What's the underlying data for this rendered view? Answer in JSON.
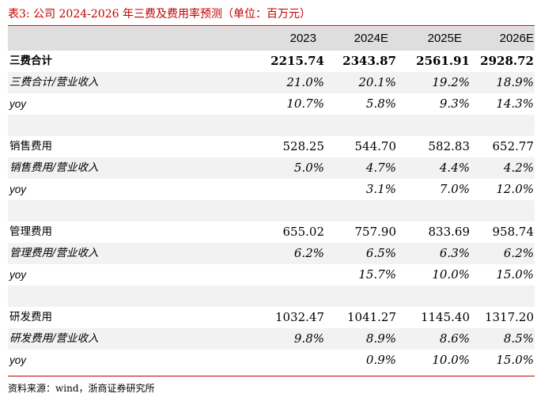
{
  "title": "表3:  公司 2024-2026 年三费及费用率预测（单位：百万元）",
  "columns": [
    "2023",
    "2024E",
    "2025E",
    "2026E"
  ],
  "rows": [
    {
      "label": "三费合计",
      "values": [
        "2215.74",
        "2343.87",
        "2561.91",
        "2928.72"
      ]
    },
    {
      "label": "三费合计/营业收入",
      "values": [
        "21.0%",
        "20.1%",
        "19.2%",
        "18.9%"
      ]
    },
    {
      "label": "yoy",
      "values": [
        "10.7%",
        "5.8%",
        "9.3%",
        "14.3%"
      ]
    },
    {
      "label": "",
      "values": [
        "",
        "",
        "",
        ""
      ]
    },
    {
      "label": "销售费用",
      "values": [
        "528.25",
        "544.70",
        "582.83",
        "652.77"
      ]
    },
    {
      "label": "销售费用/营业收入",
      "values": [
        "5.0%",
        "4.7%",
        "4.4%",
        "4.2%"
      ]
    },
    {
      "label": "yoy",
      "values": [
        "",
        "3.1%",
        "7.0%",
        "12.0%"
      ]
    },
    {
      "label": "",
      "values": [
        "",
        "",
        "",
        ""
      ]
    },
    {
      "label": "管理费用",
      "values": [
        "655.02",
        "757.90",
        "833.69",
        "958.74"
      ]
    },
    {
      "label": "管理费用/营业收入",
      "values": [
        "6.2%",
        "6.5%",
        "6.3%",
        "6.2%"
      ]
    },
    {
      "label": "yoy",
      "values": [
        "",
        "15.7%",
        "10.0%",
        "15.0%"
      ]
    },
    {
      "label": "",
      "values": [
        "",
        "",
        "",
        ""
      ]
    },
    {
      "label": "研发费用",
      "values": [
        "1032.47",
        "1041.27",
        "1145.40",
        "1317.20"
      ]
    },
    {
      "label": "研发费用/营业收入",
      "values": [
        "9.8%",
        "8.9%",
        "8.6%",
        "8.5%"
      ]
    },
    {
      "label": "yoy",
      "values": [
        "",
        "0.9%",
        "10.0%",
        "15.0%"
      ]
    }
  ],
  "source": "资料来源：wind，浙商证券研究所"
}
